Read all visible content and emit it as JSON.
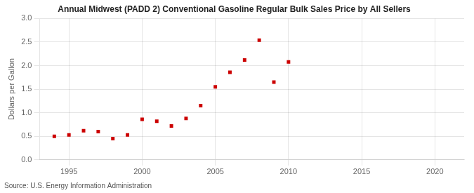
{
  "chart_data": {
    "type": "scatter",
    "title": "Annual Midwest (PADD 2) Conventional Gasoline Regular Bulk Sales Price by All Sellers",
    "ylabel": "Dollars per Gallon",
    "annotations": [
      "Source: U.S. Energy Information Administration"
    ],
    "x": [
      1994,
      1995,
      1996,
      1997,
      1998,
      1999,
      2000,
      2001,
      2002,
      2003,
      2004,
      2005,
      2006,
      2007,
      2008,
      2009,
      2010
    ],
    "values": [
      0.5,
      0.53,
      0.62,
      0.6,
      0.45,
      0.53,
      0.86,
      0.82,
      0.72,
      0.88,
      1.15,
      1.55,
      1.86,
      2.12,
      2.54,
      1.65,
      2.08
    ],
    "color": "#cc0000",
    "marker": "square",
    "xlim": [
      1993,
      2022
    ],
    "ylim": [
      0.0,
      3.0
    ],
    "xticks": [
      1995,
      2000,
      2005,
      2010,
      2015,
      2020
    ],
    "yticks": [
      {
        "value": 0.0,
        "label": "0.0"
      },
      0.5,
      {
        "value": 1.0,
        "label": "1.0"
      },
      1.5,
      {
        "value": 2.0,
        "label": "2.0"
      },
      2.5,
      {
        "value": 3.0,
        "label": "3.0"
      }
    ],
    "grid": true
  }
}
